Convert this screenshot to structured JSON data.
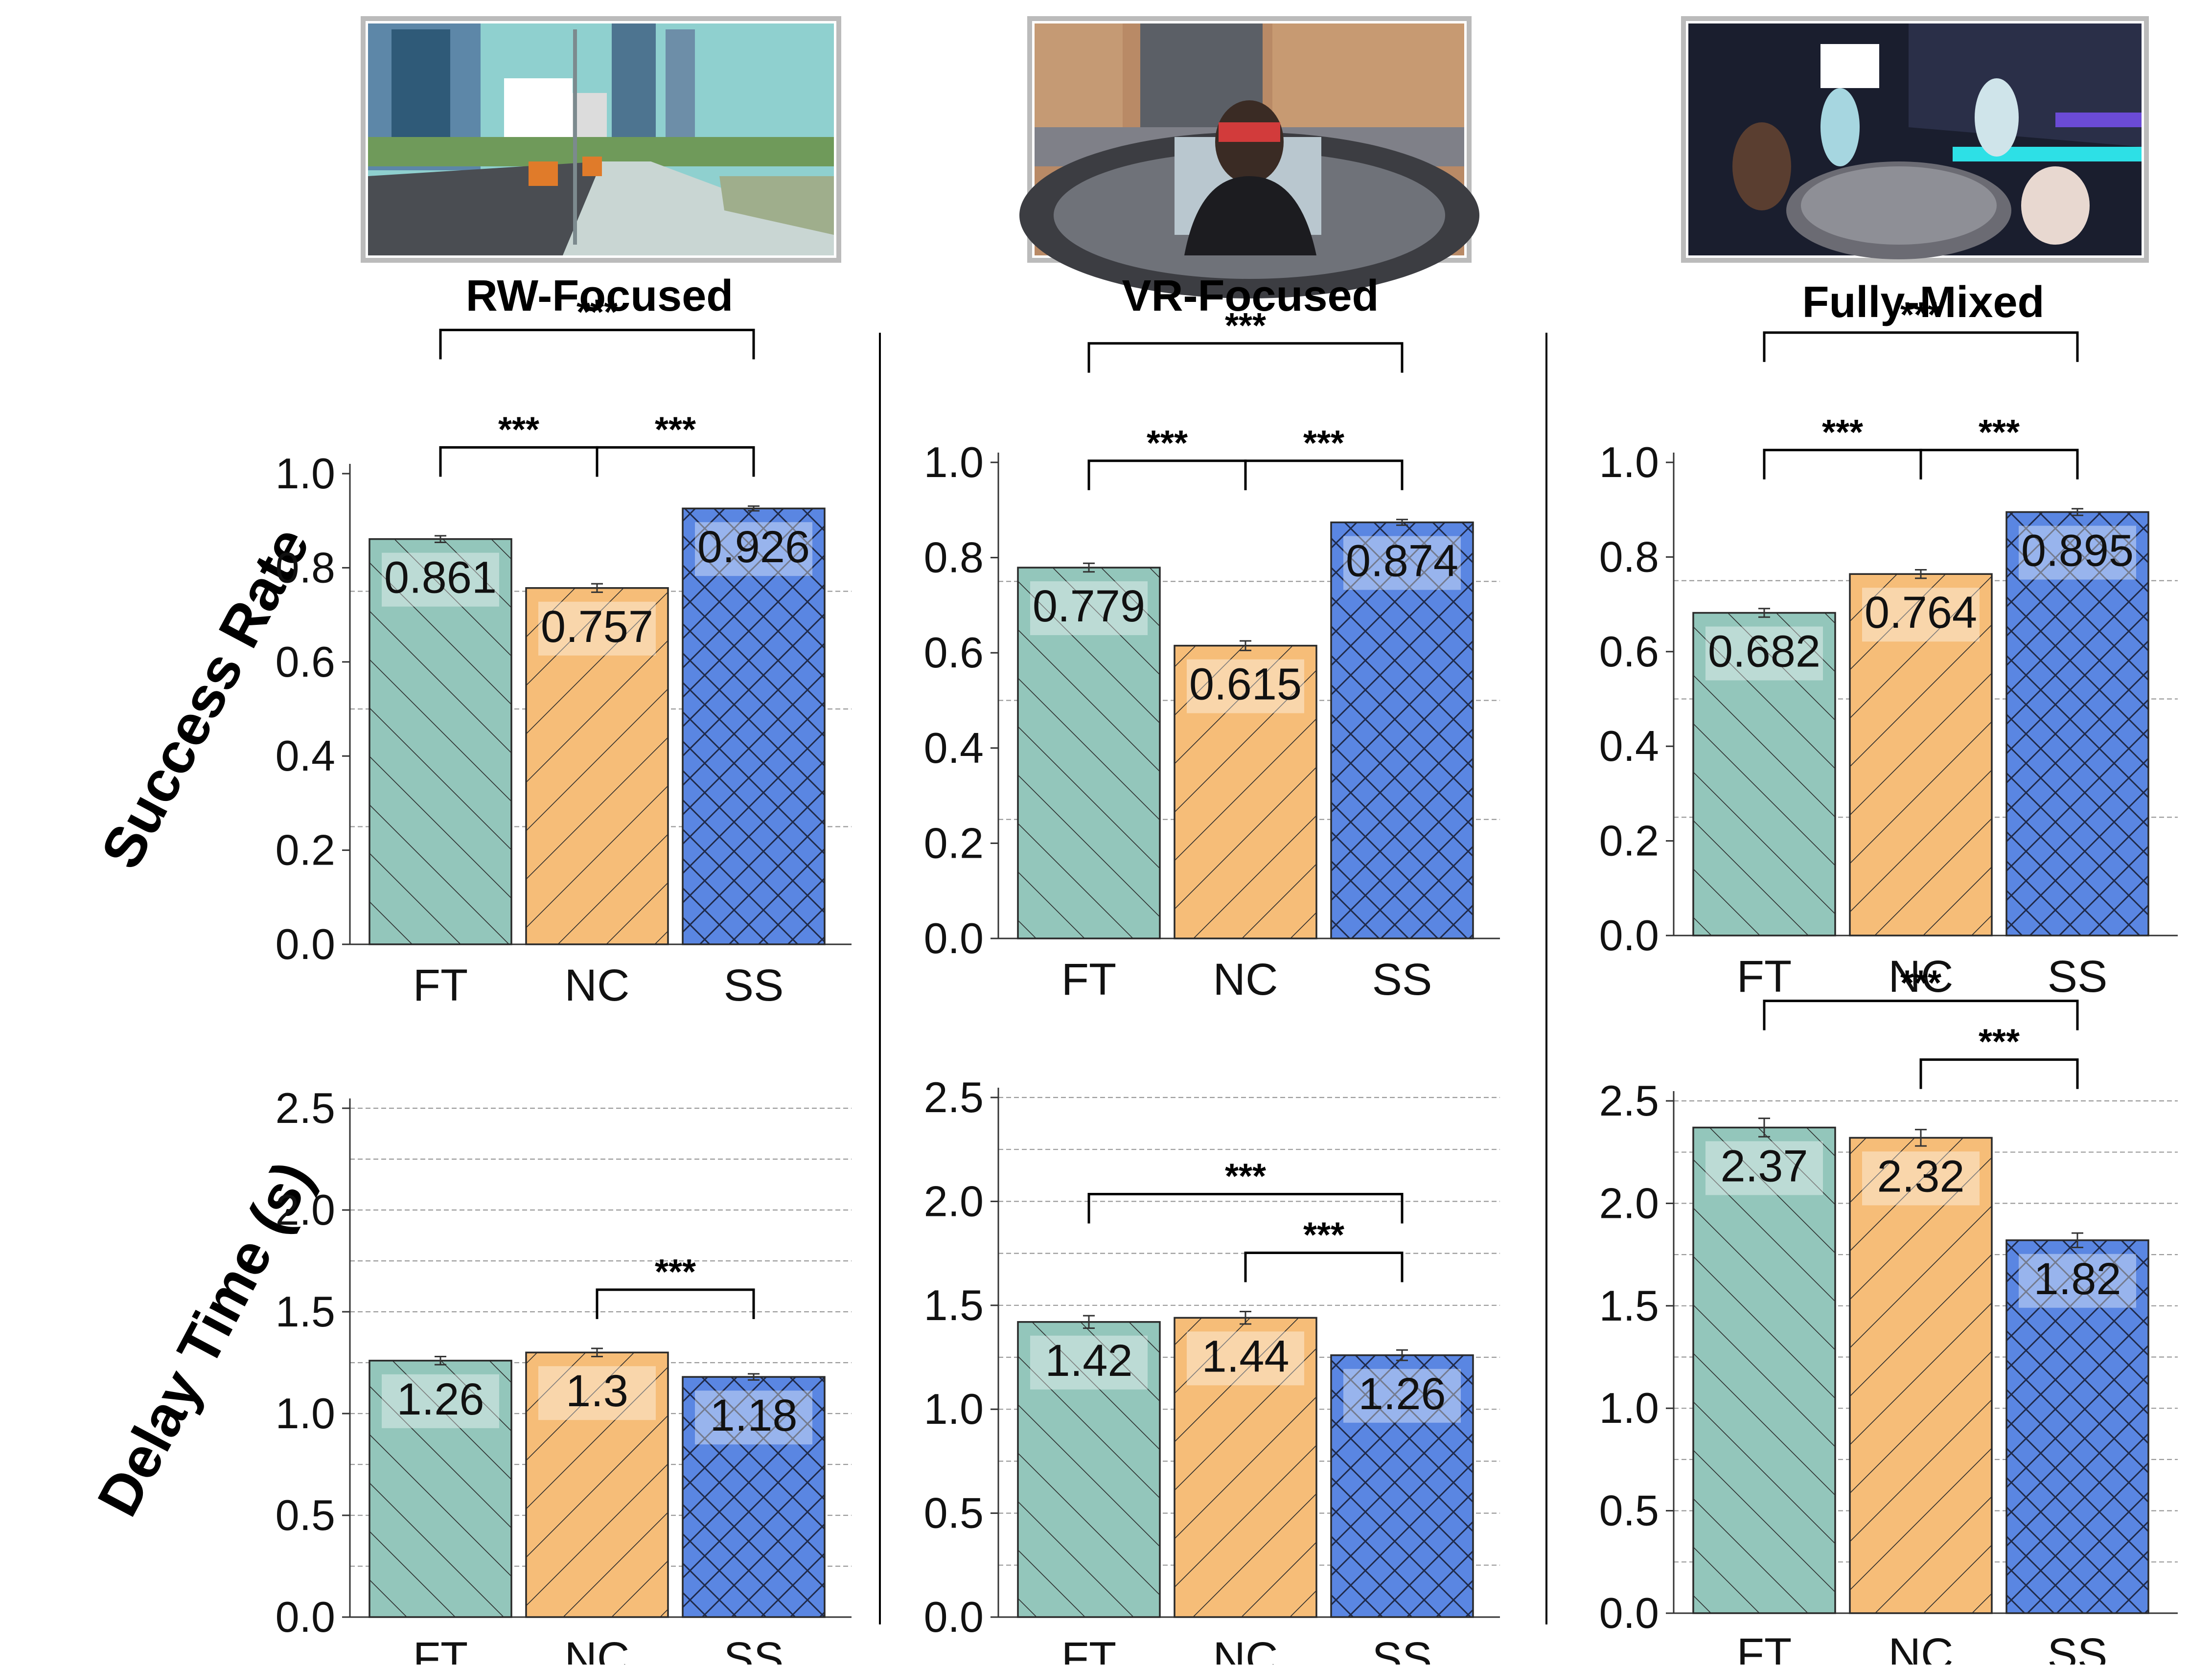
{
  "row_labels": {
    "success": "Success Rate",
    "delay": "Delay Time (s)"
  },
  "significance_marker": "***",
  "colors": {
    "FT": "#93c6bb",
    "NC": "#f6bd78",
    "SS": "#5a86e2",
    "grid": "#9a9a9a",
    "axis": "#333333"
  },
  "panels": [
    {
      "title": "RW-Focused",
      "image_alt": "RW-Focused scene thumbnail",
      "image_kind": "street"
    },
    {
      "title": "VR-Focused",
      "image_alt": "VR-Focused scene thumbnail",
      "image_kind": "vr"
    },
    {
      "title": "Fully-Mixed",
      "image_alt": "Fully-Mixed scene thumbnail",
      "image_kind": "mixed"
    }
  ],
  "chart_data": [
    {
      "type": "bar",
      "panel": "RW-Focused",
      "metric": "Success Rate",
      "categories": [
        "FT",
        "NC",
        "SS"
      ],
      "values": [
        0.861,
        0.757,
        0.926
      ],
      "value_labels": [
        "0.861",
        "0.757",
        "0.926"
      ],
      "errors": [
        0.007,
        0.009,
        0.005
      ],
      "ylim": [
        0,
        1.0
      ],
      "yticks": [
        0.0,
        0.2,
        0.4,
        0.6,
        0.8,
        1.0
      ],
      "ytick_labels": [
        "0.0",
        "0.2",
        "0.4",
        "0.6",
        "0.8",
        "1.0"
      ],
      "gridlines": [
        0.25,
        0.5,
        0.75
      ],
      "significance": [
        [
          "FT",
          "NC"
        ],
        [
          "NC",
          "SS"
        ],
        [
          "FT",
          "SS"
        ]
      ]
    },
    {
      "type": "bar",
      "panel": "VR-Focused",
      "metric": "Success Rate",
      "categories": [
        "FT",
        "NC",
        "SS"
      ],
      "values": [
        0.779,
        0.615,
        0.874
      ],
      "value_labels": [
        "0.779",
        "0.615",
        "0.874"
      ],
      "errors": [
        0.009,
        0.01,
        0.006
      ],
      "ylim": [
        0,
        1.0
      ],
      "yticks": [
        0.0,
        0.2,
        0.4,
        0.6,
        0.8,
        1.0
      ],
      "ytick_labels": [
        "0.0",
        "0.2",
        "0.4",
        "0.6",
        "0.8",
        "1.0"
      ],
      "gridlines": [
        0.25,
        0.5,
        0.75
      ],
      "significance": [
        [
          "FT",
          "NC"
        ],
        [
          "NC",
          "SS"
        ],
        [
          "FT",
          "SS"
        ]
      ]
    },
    {
      "type": "bar",
      "panel": "Fully-Mixed",
      "metric": "Success Rate",
      "categories": [
        "FT",
        "NC",
        "SS"
      ],
      "values": [
        0.682,
        0.764,
        0.895
      ],
      "value_labels": [
        "0.682",
        "0.764",
        "0.895"
      ],
      "errors": [
        0.009,
        0.009,
        0.007
      ],
      "ylim": [
        0,
        1.0
      ],
      "yticks": [
        0.0,
        0.2,
        0.4,
        0.6,
        0.8,
        1.0
      ],
      "ytick_labels": [
        "0.0",
        "0.2",
        "0.4",
        "0.6",
        "0.8",
        "1.0"
      ],
      "gridlines": [
        0.25,
        0.5,
        0.75
      ],
      "significance": [
        [
          "FT",
          "NC"
        ],
        [
          "NC",
          "SS"
        ],
        [
          "FT",
          "SS"
        ]
      ]
    },
    {
      "type": "bar",
      "panel": "RW-Focused",
      "metric": "Delay Time (s)",
      "categories": [
        "FT",
        "NC",
        "SS"
      ],
      "values": [
        1.26,
        1.3,
        1.18
      ],
      "value_labels": [
        "1.26",
        "1.3",
        "1.18"
      ],
      "errors": [
        0.02,
        0.02,
        0.015
      ],
      "ylim": [
        0,
        2.5
      ],
      "yticks": [
        0.0,
        0.5,
        1.0,
        1.5,
        2.0,
        2.5
      ],
      "ytick_labels": [
        "0.0",
        "0.5",
        "1.0",
        "1.5",
        "2.0",
        "2.5"
      ],
      "gridlines": [
        0.25,
        0.5,
        0.75,
        1.0,
        1.25,
        1.5,
        1.75,
        2.0,
        2.25,
        2.5
      ],
      "significance": [
        [
          "NC",
          "SS"
        ]
      ]
    },
    {
      "type": "bar",
      "panel": "VR-Focused",
      "metric": "Delay Time (s)",
      "categories": [
        "FT",
        "NC",
        "SS"
      ],
      "values": [
        1.42,
        1.44,
        1.26
      ],
      "value_labels": [
        "1.42",
        "1.44",
        "1.26"
      ],
      "errors": [
        0.03,
        0.03,
        0.025
      ],
      "ylim": [
        0,
        2.5
      ],
      "yticks": [
        0.0,
        0.5,
        1.0,
        1.5,
        2.0,
        2.5
      ],
      "ytick_labels": [
        "0.0",
        "0.5",
        "1.0",
        "1.5",
        "2.0",
        "2.5"
      ],
      "gridlines": [
        0.25,
        0.5,
        0.75,
        1.0,
        1.25,
        1.5,
        1.75,
        2.0,
        2.25,
        2.5
      ],
      "significance": [
        [
          "NC",
          "SS"
        ],
        [
          "FT",
          "SS"
        ]
      ]
    },
    {
      "type": "bar",
      "panel": "Fully-Mixed",
      "metric": "Delay Time (s)",
      "categories": [
        "FT",
        "NC",
        "SS"
      ],
      "values": [
        2.37,
        2.32,
        1.82
      ],
      "value_labels": [
        "2.37",
        "2.32",
        "1.82"
      ],
      "errors": [
        0.045,
        0.04,
        0.035
      ],
      "ylim": [
        0,
        2.5
      ],
      "yticks": [
        0.0,
        0.5,
        1.0,
        1.5,
        2.0,
        2.5
      ],
      "ytick_labels": [
        "0.0",
        "0.5",
        "1.0",
        "1.5",
        "2.0",
        "2.5"
      ],
      "gridlines": [
        0.25,
        0.5,
        0.75,
        1.0,
        1.25,
        1.5,
        1.75,
        2.0,
        2.25,
        2.5
      ],
      "significance": [
        [
          "NC",
          "SS"
        ],
        [
          "FT",
          "SS"
        ]
      ]
    }
  ]
}
